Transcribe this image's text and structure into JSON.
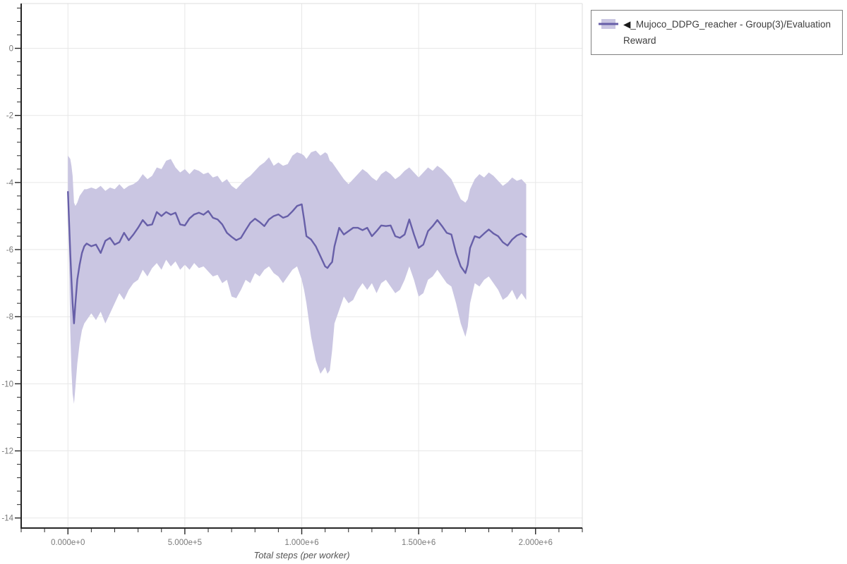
{
  "page": {
    "background": "#ffffff"
  },
  "legend": {
    "collapse_marker": "◀",
    "label": "_Mujoco_DDPG_reacher - Group(3)/Evaluation Reward",
    "border_color": "#808080"
  },
  "chart_data": {
    "type": "line",
    "title": "",
    "xlabel": "Total steps (per worker)",
    "ylabel": "",
    "xlim": [
      -200000,
      2200000
    ],
    "ylim": [
      -14.3,
      1.335
    ],
    "grid": "major-only",
    "legend_position": "outside-top-right",
    "x_minor_step": 100000,
    "y_minor_step": 0.4,
    "x_ticks": [
      {
        "v": 0,
        "label": "0.000e+0"
      },
      {
        "v": 500000,
        "label": "5.000e+5"
      },
      {
        "v": 1000000,
        "label": "1.000e+6"
      },
      {
        "v": 1500000,
        "label": "1.500e+6"
      },
      {
        "v": 2000000,
        "label": "2.000e+6"
      }
    ],
    "y_ticks": [
      {
        "v": 0,
        "label": "0"
      },
      {
        "v": -2,
        "label": "-2"
      },
      {
        "v": -4,
        "label": "-4"
      },
      {
        "v": -6,
        "label": "-6"
      },
      {
        "v": -8,
        "label": "-8"
      },
      {
        "v": -10,
        "label": "-10"
      },
      {
        "v": -12,
        "label": "-12"
      },
      {
        "v": -14,
        "label": "-14"
      }
    ],
    "colors": {
      "line": "#675fa8",
      "band": "#cac6e2",
      "grid": "#e7e7e7",
      "border": "#dcdcdc",
      "axis": "#262626",
      "tick_label": "#7a7a7a",
      "axis_title": "#555555"
    },
    "series": [
      {
        "name": "_Mujoco_DDPG_reacher - Group(3)/Evaluation Reward",
        "x": [
          0,
          5000,
          10000,
          15000,
          20000,
          26000,
          32000,
          40000,
          50000,
          60000,
          70000,
          80000,
          100000,
          120000,
          140000,
          160000,
          180000,
          200000,
          220000,
          240000,
          260000,
          280000,
          300000,
          320000,
          340000,
          360000,
          380000,
          400000,
          420000,
          440000,
          460000,
          480000,
          500000,
          520000,
          540000,
          560000,
          580000,
          600000,
          620000,
          640000,
          660000,
          680000,
          700000,
          720000,
          740000,
          760000,
          780000,
          800000,
          820000,
          840000,
          860000,
          880000,
          900000,
          920000,
          940000,
          960000,
          980000,
          1000000,
          1010000,
          1020000,
          1040000,
          1060000,
          1080000,
          1100000,
          1110000,
          1120000,
          1130000,
          1140000,
          1160000,
          1180000,
          1200000,
          1220000,
          1240000,
          1260000,
          1280000,
          1300000,
          1320000,
          1340000,
          1360000,
          1380000,
          1400000,
          1420000,
          1440000,
          1460000,
          1480000,
          1500000,
          1520000,
          1540000,
          1560000,
          1580000,
          1600000,
          1620000,
          1640000,
          1660000,
          1680000,
          1700000,
          1710000,
          1720000,
          1740000,
          1760000,
          1780000,
          1800000,
          1820000,
          1840000,
          1860000,
          1880000,
          1900000,
          1920000,
          1940000,
          1960000
        ],
        "mean": [
          -4.28,
          -5.2,
          -6.1,
          -6.9,
          -7.6,
          -8.2,
          -7.6,
          -6.9,
          -6.45,
          -6.1,
          -5.9,
          -5.82,
          -5.9,
          -5.85,
          -6.1,
          -5.74,
          -5.65,
          -5.85,
          -5.78,
          -5.5,
          -5.72,
          -5.55,
          -5.35,
          -5.12,
          -5.28,
          -5.25,
          -4.88,
          -5.0,
          -4.88,
          -4.96,
          -4.9,
          -5.25,
          -5.28,
          -5.07,
          -4.95,
          -4.9,
          -4.96,
          -4.85,
          -5.05,
          -5.1,
          -5.25,
          -5.5,
          -5.62,
          -5.72,
          -5.65,
          -5.42,
          -5.2,
          -5.08,
          -5.18,
          -5.3,
          -5.1,
          -5.0,
          -4.95,
          -5.05,
          -5.0,
          -4.86,
          -4.7,
          -4.65,
          -5.1,
          -5.6,
          -5.7,
          -5.9,
          -6.2,
          -6.5,
          -6.55,
          -6.45,
          -6.37,
          -5.9,
          -5.35,
          -5.55,
          -5.45,
          -5.35,
          -5.35,
          -5.42,
          -5.35,
          -5.6,
          -5.45,
          -5.28,
          -5.3,
          -5.28,
          -5.6,
          -5.65,
          -5.55,
          -5.1,
          -5.55,
          -5.95,
          -5.85,
          -5.45,
          -5.3,
          -5.12,
          -5.3,
          -5.5,
          -5.55,
          -6.1,
          -6.5,
          -6.7,
          -6.45,
          -5.95,
          -5.6,
          -5.65,
          -5.52,
          -5.4,
          -5.52,
          -5.6,
          -5.78,
          -5.88,
          -5.7,
          -5.58,
          -5.52,
          -5.62
        ],
        "lower": [
          -4.6,
          -6.5,
          -8.4,
          -9.6,
          -10.3,
          -10.6,
          -10.1,
          -9.4,
          -8.8,
          -8.4,
          -8.2,
          -8.1,
          -7.9,
          -8.1,
          -7.85,
          -8.2,
          -7.9,
          -7.6,
          -7.3,
          -7.5,
          -7.2,
          -7.0,
          -6.9,
          -6.6,
          -6.8,
          -6.55,
          -6.4,
          -6.6,
          -6.3,
          -6.5,
          -6.35,
          -6.6,
          -6.45,
          -6.6,
          -6.4,
          -6.55,
          -6.5,
          -6.65,
          -6.8,
          -6.75,
          -7.0,
          -6.9,
          -7.4,
          -7.45,
          -7.2,
          -6.9,
          -7.0,
          -6.7,
          -6.8,
          -6.6,
          -6.5,
          -6.7,
          -6.8,
          -7.0,
          -6.8,
          -6.6,
          -6.5,
          -6.9,
          -7.2,
          -7.6,
          -8.6,
          -9.3,
          -9.7,
          -9.5,
          -9.7,
          -9.6,
          -9.0,
          -8.2,
          -7.8,
          -7.4,
          -7.6,
          -7.5,
          -7.2,
          -7.0,
          -7.2,
          -7.0,
          -7.3,
          -7.0,
          -6.9,
          -7.1,
          -7.3,
          -7.2,
          -6.9,
          -6.5,
          -6.9,
          -7.4,
          -7.3,
          -6.9,
          -6.8,
          -6.6,
          -6.8,
          -7.0,
          -7.1,
          -7.6,
          -8.2,
          -8.6,
          -8.3,
          -7.6,
          -7.0,
          -7.1,
          -6.9,
          -6.8,
          -7.0,
          -7.2,
          -7.5,
          -7.4,
          -7.2,
          -7.5,
          -7.3,
          -7.5
        ],
        "upper": [
          -3.2,
          -3.25,
          -3.3,
          -3.5,
          -3.8,
          -4.6,
          -4.7,
          -4.6,
          -4.4,
          -4.3,
          -4.2,
          -4.2,
          -4.15,
          -4.2,
          -4.1,
          -4.25,
          -4.15,
          -4.2,
          -4.05,
          -4.2,
          -4.1,
          -4.05,
          -3.95,
          -3.75,
          -3.9,
          -3.8,
          -3.55,
          -3.6,
          -3.35,
          -3.3,
          -3.55,
          -3.7,
          -3.6,
          -3.75,
          -3.6,
          -3.65,
          -3.75,
          -3.7,
          -3.85,
          -3.8,
          -4.0,
          -3.9,
          -4.1,
          -4.2,
          -4.05,
          -3.9,
          -3.8,
          -3.65,
          -3.5,
          -3.4,
          -3.25,
          -3.5,
          -3.4,
          -3.5,
          -3.45,
          -3.2,
          -3.1,
          -3.15,
          -3.2,
          -3.3,
          -3.1,
          -3.05,
          -3.2,
          -3.1,
          -3.15,
          -3.35,
          -3.4,
          -3.5,
          -3.7,
          -3.9,
          -4.05,
          -3.9,
          -3.75,
          -3.6,
          -3.7,
          -3.85,
          -3.95,
          -3.75,
          -3.65,
          -3.75,
          -3.9,
          -3.8,
          -3.65,
          -3.55,
          -3.7,
          -3.85,
          -3.7,
          -3.55,
          -3.65,
          -3.5,
          -3.6,
          -3.75,
          -3.9,
          -4.2,
          -4.5,
          -4.6,
          -4.5,
          -4.2,
          -3.9,
          -3.75,
          -3.85,
          -3.7,
          -3.8,
          -3.95,
          -4.1,
          -4.0,
          -3.85,
          -3.95,
          -3.9,
          -4.05
        ]
      }
    ]
  }
}
